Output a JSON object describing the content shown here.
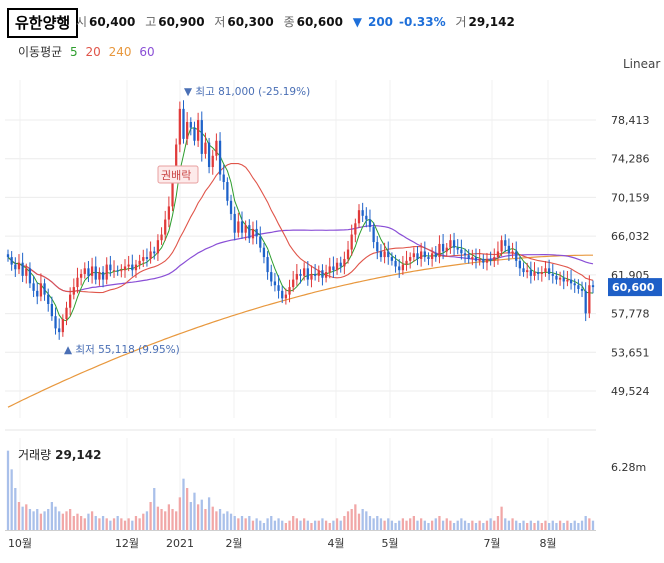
{
  "header": {
    "title": "유한양행",
    "quote": [
      {
        "label": "시",
        "value": "60,400"
      },
      {
        "label": "고",
        "value": "60,900"
      },
      {
        "label": "저",
        "value": "60,300"
      },
      {
        "label": "종",
        "value": "60,600"
      }
    ],
    "change_arrow": "▼",
    "change_value": "200",
    "change_pct": "-0.33%",
    "volume_label": "거",
    "volume_value": "29,142"
  },
  "moving_avg": {
    "label": "이동평균",
    "periods": [
      {
        "value": "5",
        "color": "#2e9e2e"
      },
      {
        "value": "20",
        "color": "#e0554a"
      },
      {
        "value": "240",
        "color": "#e8983e"
      },
      {
        "value": "60",
        "color": "#8a4fd6"
      }
    ]
  },
  "scale_mode": "Linear",
  "colors": {
    "up": "#e03a3a",
    "down": "#1e62c9",
    "last_price_bg": "#1e5fc7"
  },
  "chart_data": {
    "type": "candlestick",
    "y_ticks": [
      "78,413",
      "74,286",
      "70,159",
      "66,032",
      "61,905",
      "57,778",
      "53,651",
      "49,524"
    ],
    "y_tick_values": [
      78413,
      74286,
      70159,
      66032,
      61905,
      57778,
      53651,
      49524
    ],
    "ylim": [
      45000,
      85000
    ],
    "x_ticks": [
      "10월",
      "12월",
      "2021",
      "2월",
      "4월",
      "5월",
      "7월",
      "8월"
    ],
    "last_price": "60,600",
    "annotations": {
      "high": {
        "text": "최고",
        "value": "81,000",
        "pct": "(-25.19%)",
        "marker": "▼"
      },
      "low": {
        "text": "최저",
        "value": "55,118",
        "pct": "(9.95%)",
        "marker": "▲"
      },
      "event": "권배락"
    },
    "close_series": [
      63800,
      63000,
      62500,
      63200,
      61800,
      62600,
      61000,
      60200,
      59600,
      61000,
      59800,
      58800,
      57500,
      56200,
      55800,
      57200,
      58400,
      59800,
      60600,
      61600,
      62000,
      62600,
      61800,
      62800,
      61400,
      62200,
      61400,
      63000,
      62400,
      62400,
      62300,
      62400,
      62800,
      63000,
      62400,
      63000,
      63400,
      63800,
      63600,
      64400,
      64200,
      65600,
      66200,
      67800,
      69200,
      72400,
      75800,
      79600,
      76400,
      78200,
      77600,
      76200,
      78400,
      74800,
      76000,
      73400,
      74600,
      76200,
      72600,
      71800,
      69800,
      68400,
      66400,
      67600,
      66400,
      67200,
      65800,
      66800,
      66000,
      64800,
      63800,
      62200,
      61200,
      60800,
      60200,
      59400,
      59800,
      60600,
      61400,
      62000,
      61800,
      62600,
      61400,
      62000,
      61800,
      62400,
      61600,
      62200,
      62800,
      62400,
      63200,
      62800,
      63600,
      64600,
      66200,
      67400,
      68800,
      68200,
      67800,
      67000,
      65400,
      64400,
      63800,
      64400,
      63800,
      63400,
      62800,
      62400,
      63000,
      63400,
      63800,
      64200,
      63600,
      64400,
      63800,
      63600,
      64200,
      63800,
      65200,
      64400,
      64800,
      65600,
      64800,
      64600,
      64200,
      64000,
      63600,
      63800,
      63400,
      63600,
      63200,
      63600,
      63400,
      63800,
      64400,
      65600,
      65000,
      64200,
      64400,
      63400,
      62600,
      62200,
      62400,
      61800,
      62200,
      62000,
      62200,
      62600,
      62000,
      61800,
      61400,
      61600,
      61200,
      61400,
      61000,
      60800,
      60400,
      60200,
      57800,
      60800,
      60600
    ],
    "volume_series": [
      34,
      26,
      18,
      12,
      10,
      11,
      9,
      8,
      9,
      7,
      8,
      9,
      12,
      10,
      8,
      7,
      8,
      9,
      6,
      7,
      6,
      5,
      7,
      8,
      6,
      5,
      6,
      5,
      4,
      5,
      6,
      5,
      4,
      5,
      4,
      6,
      5,
      7,
      8,
      12,
      18,
      10,
      9,
      8,
      11,
      9,
      8,
      14,
      22,
      18,
      12,
      16,
      11,
      13,
      9,
      14,
      10,
      8,
      9,
      7,
      8,
      7,
      6,
      5,
      6,
      5,
      6,
      4,
      5,
      4,
      3,
      5,
      6,
      4,
      5,
      4,
      3,
      4,
      6,
      5,
      4,
      5,
      4,
      3,
      4,
      4,
      5,
      4,
      3,
      4,
      5,
      4,
      6,
      8,
      9,
      11,
      7,
      9,
      8,
      6,
      5,
      6,
      5,
      4,
      5,
      4,
      3,
      4,
      5,
      4,
      5,
      6,
      4,
      5,
      4,
      3,
      4,
      5,
      6,
      4,
      5,
      4,
      3,
      4,
      5,
      4,
      3,
      4,
      3,
      4,
      3,
      4,
      5,
      4,
      6,
      10,
      5,
      4,
      5,
      4,
      3,
      4,
      3,
      4,
      3,
      4,
      3,
      4,
      3,
      4,
      3,
      4,
      3,
      4,
      3,
      4,
      3,
      4,
      6,
      5,
      4
    ],
    "volume_title": "거래량",
    "volume_value": "29,142",
    "volume_tick": "6.28m"
  }
}
